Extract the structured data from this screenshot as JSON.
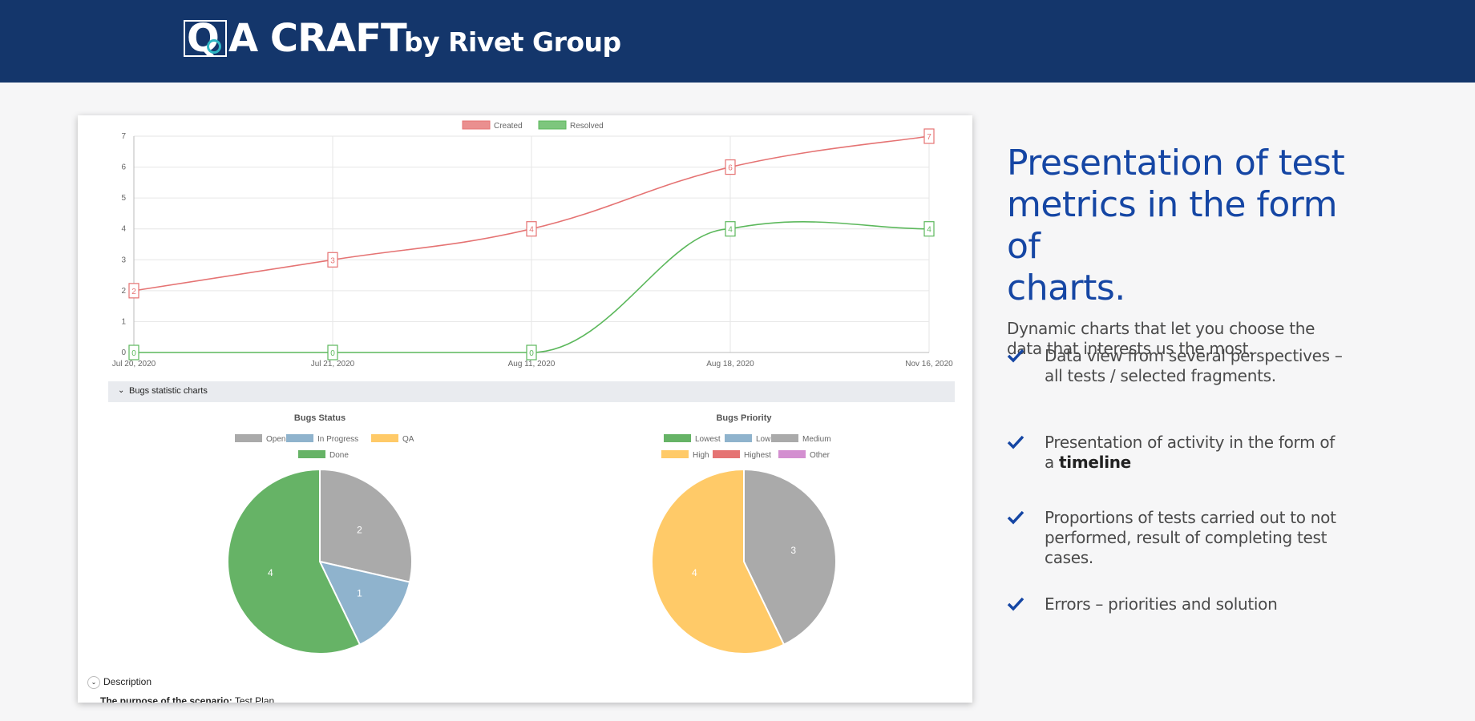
{
  "brand": {
    "logo_q": "Q",
    "logo_word": "A CRAFT",
    "by_line": "by Rivet Group"
  },
  "card": {
    "section_label": "Bugs statistic charts",
    "section_chevron": "⌄",
    "description_label": "Description",
    "purpose_label": "The purpose of the scenario:",
    "purpose_value": "Test Plan"
  },
  "right_panel": {
    "headline_line1": "Presentation of test",
    "headline_line2": "metrics in the form of",
    "headline_line3": "charts.",
    "subtitle_line1": "Dynamic charts that let you choose the",
    "subtitle_line2": "data that interests us the most.",
    "bullets": [
      {
        "line1": "Data view from several perspectives –",
        "line2": "all tests / selected fragments."
      },
      {
        "line1": "Presentation of activity in the form of",
        "line2_prefix": "a ",
        "line2_bold": "timeline"
      },
      {
        "line1": "Proportions of tests carried out to not",
        "line2": "performed, result of completing test",
        "line3": "cases."
      },
      {
        "line1": "Errors – priorities and solution"
      }
    ]
  },
  "colors": {
    "header_bg": "#14366b",
    "accent_blue": "#1546a4",
    "created": "#e57373",
    "resolved": "#5cb85c",
    "open": "#aaaaaa",
    "in_progress": "#8fb3cd",
    "qa": "#ffca68",
    "done": "#66b366"
  },
  "chart_data": [
    {
      "type": "line",
      "title": "",
      "categories": [
        "Jul 20, 2020",
        "Jul 21, 2020",
        "Aug 11, 2020",
        "Aug 18, 2020",
        "Nov 16, 2020"
      ],
      "series": [
        {
          "name": "Created",
          "values": [
            2,
            3,
            4,
            6,
            7
          ],
          "color": "#e57373"
        },
        {
          "name": "Resolved",
          "values": [
            0,
            0,
            0,
            4,
            4
          ],
          "color": "#5cb85c"
        }
      ],
      "ylim": [
        0,
        7
      ],
      "yticks": [
        0,
        1,
        2,
        3,
        4,
        5,
        6,
        7
      ],
      "grid": true,
      "legend": "top-center"
    },
    {
      "type": "pie",
      "title": "Bugs Status",
      "legend_rows": [
        [
          "Open",
          "In Progress",
          "QA"
        ],
        [
          "Done"
        ]
      ],
      "legend_colors": [
        "#aaaaaa",
        "#8fb3cd",
        "#ffca68",
        "#66b366"
      ],
      "slices": [
        {
          "label": "Open",
          "value": 2,
          "color": "#aaaaaa"
        },
        {
          "label": "In Progress",
          "value": 1,
          "color": "#8fb3cd"
        },
        {
          "label": "QA",
          "value": 0,
          "color": "#ffca68"
        },
        {
          "label": "Done",
          "value": 4,
          "color": "#66b366"
        }
      ]
    },
    {
      "type": "pie",
      "title": "Bugs Priority",
      "legend_rows": [
        [
          "Lowest",
          "Low",
          "Medium"
        ],
        [
          "High",
          "Highest",
          "Other"
        ]
      ],
      "legend_colors": [
        "#66b366",
        "#8fb3cd",
        "#aaaaaa",
        "#ffca68",
        "#e57373",
        "#d38fd0"
      ],
      "slices": [
        {
          "label": "Lowest",
          "value": 0,
          "color": "#66b366"
        },
        {
          "label": "Low",
          "value": 0,
          "color": "#8fb3cd"
        },
        {
          "label": "Medium",
          "value": 3,
          "color": "#aaaaaa"
        },
        {
          "label": "High",
          "value": 4,
          "color": "#ffca68"
        },
        {
          "label": "Highest",
          "value": 0,
          "color": "#e57373"
        },
        {
          "label": "Other",
          "value": 0,
          "color": "#d38fd0"
        }
      ]
    }
  ]
}
